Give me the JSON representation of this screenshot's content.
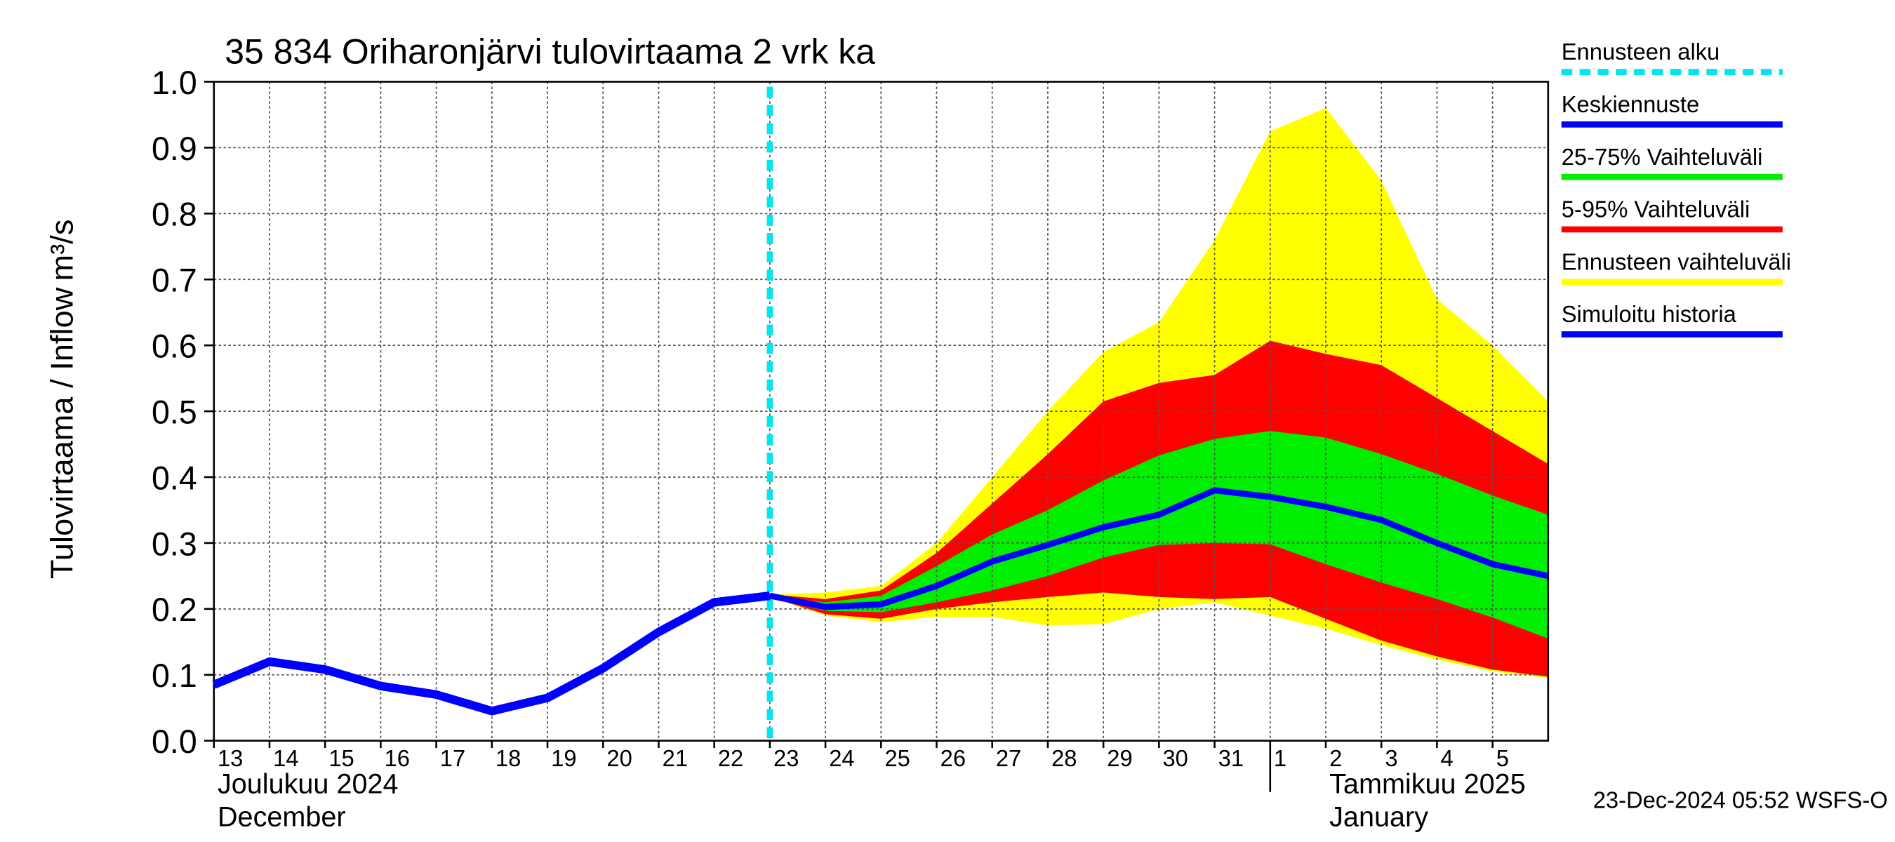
{
  "chart_data": {
    "type": "forecast-band",
    "title": "35 834 Oriharonjärvi tulovirtaama 2 vrk ka",
    "y_label": "Tulovirtaama / Inflow",
    "y_unit": "m³/s",
    "footer": "23-Dec-2024 05:52 WSFS-O",
    "months": [
      {
        "x": 0,
        "label_fi": "Joulukuu  2024",
        "label_en": "December"
      },
      {
        "x": 19,
        "label_fi": "Tammikuu  2025",
        "label_en": "January"
      }
    ],
    "xlim": [
      0,
      24
    ],
    "xticks": [
      {
        "value": 0,
        "label": "13"
      },
      {
        "value": 1,
        "label": "14"
      },
      {
        "value": 2,
        "label": "15"
      },
      {
        "value": 3,
        "label": "16"
      },
      {
        "value": 4,
        "label": "17"
      },
      {
        "value": 5,
        "label": "18"
      },
      {
        "value": 6,
        "label": "19"
      },
      {
        "value": 7,
        "label": "20"
      },
      {
        "value": 8,
        "label": "21"
      },
      {
        "value": 9,
        "label": "22"
      },
      {
        "value": 10,
        "label": "23"
      },
      {
        "value": 11,
        "label": "24"
      },
      {
        "value": 12,
        "label": "25"
      },
      {
        "value": 13,
        "label": "26"
      },
      {
        "value": 14,
        "label": "27"
      },
      {
        "value": 15,
        "label": "28"
      },
      {
        "value": 16,
        "label": "29"
      },
      {
        "value": 17,
        "label": "30"
      },
      {
        "value": 18,
        "label": "31"
      },
      {
        "value": 19,
        "label": "1"
      },
      {
        "value": 20,
        "label": "2"
      },
      {
        "value": 21,
        "label": "3"
      },
      {
        "value": 22,
        "label": "4"
      },
      {
        "value": 23,
        "label": "5"
      }
    ],
    "ylim": [
      0,
      1
    ],
    "yticks": [
      {
        "value": 0,
        "label": "0.0"
      },
      {
        "value": 0.1,
        "label": "0.1"
      },
      {
        "value": 0.2,
        "label": "0.2"
      },
      {
        "value": 0.3,
        "label": "0.3"
      },
      {
        "value": 0.4,
        "label": "0.4"
      },
      {
        "value": 0.5,
        "label": "0.5"
      },
      {
        "value": 0.6,
        "label": "0.6"
      },
      {
        "value": 0.7,
        "label": "0.7"
      },
      {
        "value": 0.8,
        "label": "0.8"
      },
      {
        "value": 0.9,
        "label": "0.9"
      },
      {
        "value": 1,
        "label": "1.0"
      }
    ],
    "grid": true,
    "forecast_start": {
      "name": "Ennusteen alku",
      "color": "#00e5ee",
      "x": 10
    },
    "forecast_x": [
      10,
      11,
      12,
      13,
      14,
      15,
      16,
      17,
      18,
      19,
      20,
      21,
      22,
      23,
      24
    ],
    "bands": [
      {
        "name": "Ennusteen vaihteluväli",
        "color": "#ffff00",
        "upper": [
          0.222,
          0.225,
          0.235,
          0.3,
          0.4,
          0.5,
          0.59,
          0.635,
          0.76,
          0.925,
          0.96,
          0.85,
          0.67,
          0.6,
          0.515
        ],
        "lower": [
          0.218,
          0.19,
          0.18,
          0.188,
          0.188,
          0.175,
          0.177,
          0.2,
          0.21,
          0.19,
          0.17,
          0.145,
          0.123,
          0.105,
          0.095
        ]
      },
      {
        "name": "5-95% Vaihteluväli",
        "color": "#ff0000",
        "upper": [
          0.222,
          0.215,
          0.228,
          0.285,
          0.36,
          0.435,
          0.515,
          0.543,
          0.555,
          0.607,
          0.587,
          0.57,
          0.52,
          0.47,
          0.42
        ],
        "lower": [
          0.218,
          0.192,
          0.185,
          0.2,
          0.21,
          0.218,
          0.225,
          0.218,
          0.215,
          0.218,
          0.185,
          0.152,
          0.128,
          0.108,
          0.097
        ]
      },
      {
        "name": "25-75% Vaihteluväli",
        "color": "#00ee00",
        "upper": [
          0.22,
          0.21,
          0.22,
          0.265,
          0.313,
          0.35,
          0.395,
          0.433,
          0.458,
          0.47,
          0.46,
          0.435,
          0.405,
          0.372,
          0.343
        ],
        "lower": [
          0.22,
          0.197,
          0.195,
          0.21,
          0.228,
          0.25,
          0.278,
          0.297,
          0.3,
          0.298,
          0.268,
          0.24,
          0.215,
          0.187,
          0.155
        ]
      }
    ],
    "series": [
      {
        "name": "Keskiennuste",
        "color": "#0000ff",
        "x": [
          10,
          11,
          12,
          13,
          14,
          15,
          16,
          17,
          18,
          19,
          20,
          21,
          22,
          23,
          24
        ],
        "values": [
          0.22,
          0.203,
          0.207,
          0.235,
          0.272,
          0.297,
          0.324,
          0.343,
          0.38,
          0.37,
          0.355,
          0.335,
          0.3,
          0.268,
          0.25
        ]
      },
      {
        "name": "Simuloitu historia",
        "color": "#0000ff",
        "x": [
          0,
          1,
          2,
          3,
          4,
          5,
          6,
          7,
          8,
          9,
          10
        ],
        "values": [
          0.085,
          0.12,
          0.108,
          0.083,
          0.07,
          0.045,
          0.065,
          0.11,
          0.165,
          0.21,
          0.22
        ]
      }
    ],
    "legend_order": [
      "forecast_start",
      "series.0",
      "bands.2",
      "bands.1",
      "bands.0",
      "series.1"
    ]
  }
}
